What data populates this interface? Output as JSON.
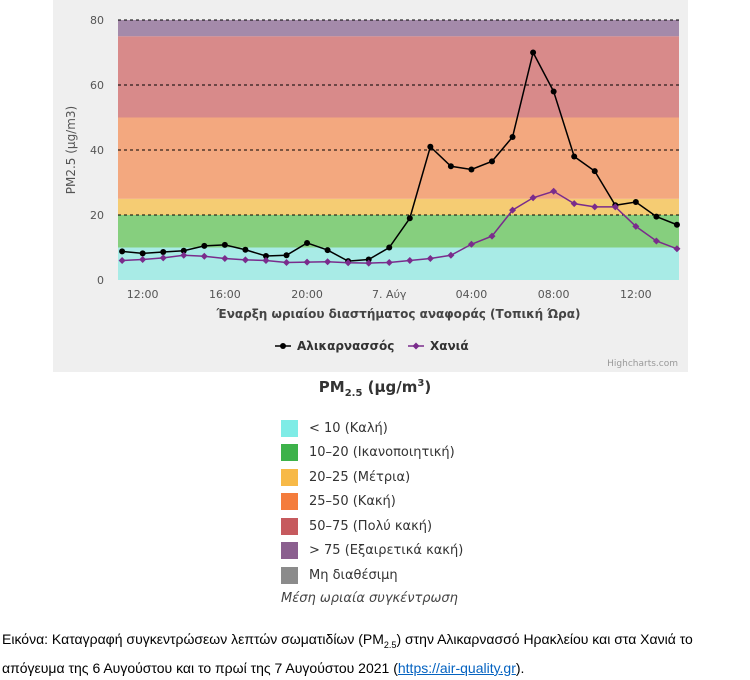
{
  "chart_data": {
    "type": "line",
    "xlabel": "Έναρξη ωριαίου διαστήματος αναφοράς (Τοπική Ώρα)",
    "ylabel": "PM2.5 (μg/m3)",
    "ylim": [
      0,
      80
    ],
    "y_ticks": [
      "0",
      "20",
      "40",
      "60",
      "80"
    ],
    "y_tick_values": [
      0,
      20,
      40,
      60,
      80
    ],
    "x_ticks": [
      "12:00",
      "16:00",
      "20:00",
      "7. Αύγ",
      "04:00",
      "08:00",
      "12:00"
    ],
    "x_tick_hours": [
      1,
      5,
      9,
      13,
      17,
      21,
      25
    ],
    "x_hours": [
      0,
      1,
      2,
      3,
      4,
      5,
      6,
      7,
      8,
      9,
      10,
      11,
      12,
      13,
      14,
      15,
      16,
      17,
      18,
      19,
      20,
      21,
      22,
      23,
      24,
      25,
      26,
      27
    ],
    "grid": "dashed at 20, 40, 60, 80",
    "bands": [
      {
        "from": 0,
        "to": 10,
        "color": "#a8ebe6"
      },
      {
        "from": 10,
        "to": 20,
        "color": "#86cf7e"
      },
      {
        "from": 20,
        "to": 25,
        "color": "#f5cc73"
      },
      {
        "from": 25,
        "to": 50,
        "color": "#f3a87f"
      },
      {
        "from": 50,
        "to": 75,
        "color": "#d88a8a"
      },
      {
        "from": 75,
        "to": 80,
        "color": "#a48aaa"
      }
    ],
    "series": [
      {
        "name": "Αλικαρνασσός",
        "color": "#000000",
        "values": [
          8.8,
          8.2,
          8.6,
          9,
          10.5,
          10.8,
          9.3,
          7.4,
          7.6,
          11.4,
          9.2,
          5.8,
          6.3,
          10,
          19,
          41,
          35,
          34,
          36.5,
          44,
          70,
          58,
          38,
          33.5,
          23,
          24,
          19.5,
          17
        ]
      },
      {
        "name": "Χανιά",
        "color": "#7a2c8c",
        "values": [
          6,
          6.3,
          6.8,
          7.6,
          7.3,
          6.6,
          6.2,
          6,
          5.4,
          5.5,
          5.6,
          5.3,
          5.2,
          5.4,
          6,
          6.6,
          7.6,
          11,
          13.5,
          21.5,
          25.3,
          27.3,
          23.5,
          22.5,
          22.5,
          16.5,
          12,
          9.6
        ]
      }
    ],
    "legend_position": "bottom-center"
  },
  "credits": "Highcharts.com",
  "aq_legend": {
    "title_main": "PM",
    "title_sub": "2.5",
    "title_units": " (μg/m",
    "title_sup": "3",
    "title_close": ")",
    "items": [
      {
        "label": "< 10 (Καλή)",
        "color": "#7eece6"
      },
      {
        "label": "10–20 (Ικανοποιητική)",
        "color": "#3db24a"
      },
      {
        "label": "20–25 (Μέτρια)",
        "color": "#f7b947"
      },
      {
        "label": "25–50 (Κακή)",
        "color": "#f47c3c"
      },
      {
        "label": "50–75 (Πολύ κακή)",
        "color": "#c65a5e"
      },
      {
        "label": "> 75 (Εξαιρετικά κακή)",
        "color": "#8b5f8f"
      },
      {
        "label": "Μη διαθέσιμη",
        "color": "#8b8b8b"
      }
    ],
    "note": "Μέση ωριαία συγκέντρωση"
  },
  "caption": {
    "pre": "Εικόνα: Καταγραφή συγκεντρώσεων λεπτών σωματιδίων (PM",
    "sub": "2.5",
    "mid": ") στην Αλικαρνασσό Ηρακλείου και στα Χανιά το απόγευμα της 6 Αυγούστου και το πρωί της 7 Αυγούστου 2021 (",
    "link": "https://air-quality.gr",
    "post": ")."
  }
}
